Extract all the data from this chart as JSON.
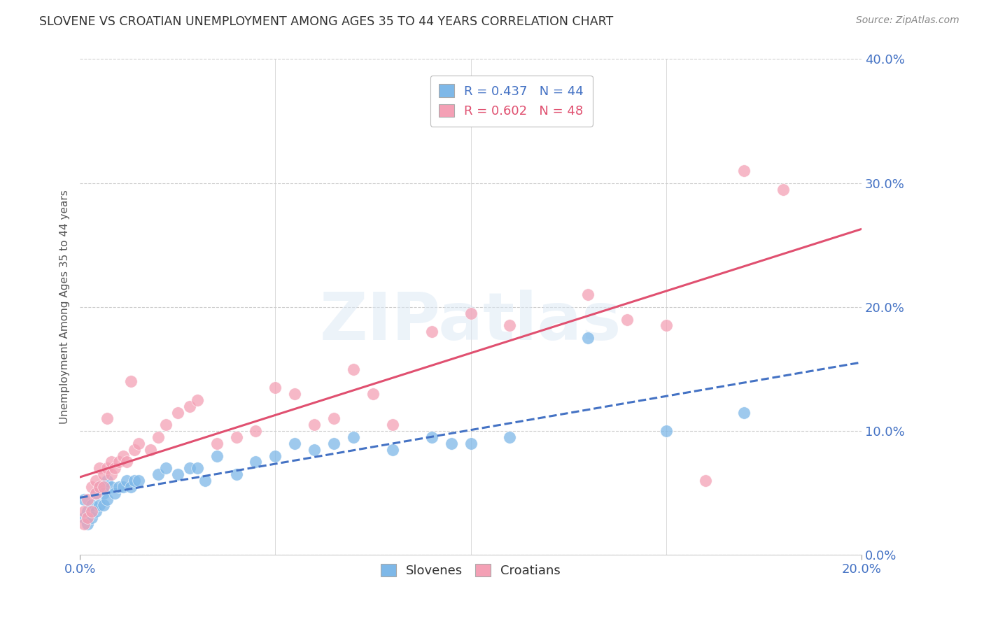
{
  "title": "SLOVENE VS CROATIAN UNEMPLOYMENT AMONG AGES 35 TO 44 YEARS CORRELATION CHART",
  "source": "Source: ZipAtlas.com",
  "ylabel": "Unemployment Among Ages 35 to 44 years",
  "xlim": [
    0.0,
    0.2
  ],
  "ylim": [
    0.0,
    0.4
  ],
  "xticks": [
    0.0,
    0.2
  ],
  "yticks": [
    0.0,
    0.1,
    0.2,
    0.3,
    0.4
  ],
  "slovene_color": "#7eb8e8",
  "croatian_color": "#f4a0b5",
  "slovene_line_color": "#4472c4",
  "croatian_line_color": "#e05070",
  "R_slovene": 0.437,
  "N_slovene": 44,
  "R_croatian": 0.602,
  "N_croatian": 48,
  "background_color": "#ffffff",
  "grid_color": "#cccccc",
  "watermark": "ZIPatlas",
  "tick_label_color": "#4472c4",
  "slovene_R_color": "#4472c4",
  "croatian_R_color": "#e05070",
  "sl_x": [
    0.001,
    0.001,
    0.002,
    0.002,
    0.003,
    0.003,
    0.004,
    0.004,
    0.005,
    0.005,
    0.006,
    0.006,
    0.007,
    0.007,
    0.008,
    0.009,
    0.01,
    0.011,
    0.012,
    0.013,
    0.014,
    0.015,
    0.02,
    0.022,
    0.025,
    0.028,
    0.03,
    0.032,
    0.035,
    0.04,
    0.045,
    0.05,
    0.055,
    0.06,
    0.065,
    0.07,
    0.08,
    0.09,
    0.095,
    0.1,
    0.11,
    0.13,
    0.15,
    0.17
  ],
  "sl_y": [
    0.03,
    0.045,
    0.025,
    0.035,
    0.03,
    0.04,
    0.035,
    0.05,
    0.04,
    0.055,
    0.04,
    0.05,
    0.045,
    0.06,
    0.055,
    0.05,
    0.055,
    0.055,
    0.06,
    0.055,
    0.06,
    0.06,
    0.065,
    0.07,
    0.065,
    0.07,
    0.07,
    0.06,
    0.08,
    0.065,
    0.075,
    0.08,
    0.09,
    0.085,
    0.09,
    0.095,
    0.085,
    0.095,
    0.09,
    0.09,
    0.095,
    0.175,
    0.1,
    0.115
  ],
  "cr_x": [
    0.001,
    0.001,
    0.002,
    0.002,
    0.003,
    0.003,
    0.004,
    0.004,
    0.005,
    0.005,
    0.006,
    0.006,
    0.007,
    0.007,
    0.008,
    0.008,
    0.009,
    0.01,
    0.011,
    0.012,
    0.013,
    0.014,
    0.015,
    0.018,
    0.02,
    0.022,
    0.025,
    0.028,
    0.03,
    0.035,
    0.04,
    0.045,
    0.05,
    0.055,
    0.06,
    0.065,
    0.07,
    0.075,
    0.08,
    0.09,
    0.1,
    0.11,
    0.13,
    0.14,
    0.15,
    0.16,
    0.17,
    0.18
  ],
  "cr_y": [
    0.025,
    0.035,
    0.03,
    0.045,
    0.035,
    0.055,
    0.05,
    0.06,
    0.055,
    0.07,
    0.055,
    0.065,
    0.07,
    0.11,
    0.065,
    0.075,
    0.07,
    0.075,
    0.08,
    0.075,
    0.14,
    0.085,
    0.09,
    0.085,
    0.095,
    0.105,
    0.115,
    0.12,
    0.125,
    0.09,
    0.095,
    0.1,
    0.135,
    0.13,
    0.105,
    0.11,
    0.15,
    0.13,
    0.105,
    0.18,
    0.195,
    0.185,
    0.21,
    0.19,
    0.185,
    0.06,
    0.31,
    0.295
  ]
}
